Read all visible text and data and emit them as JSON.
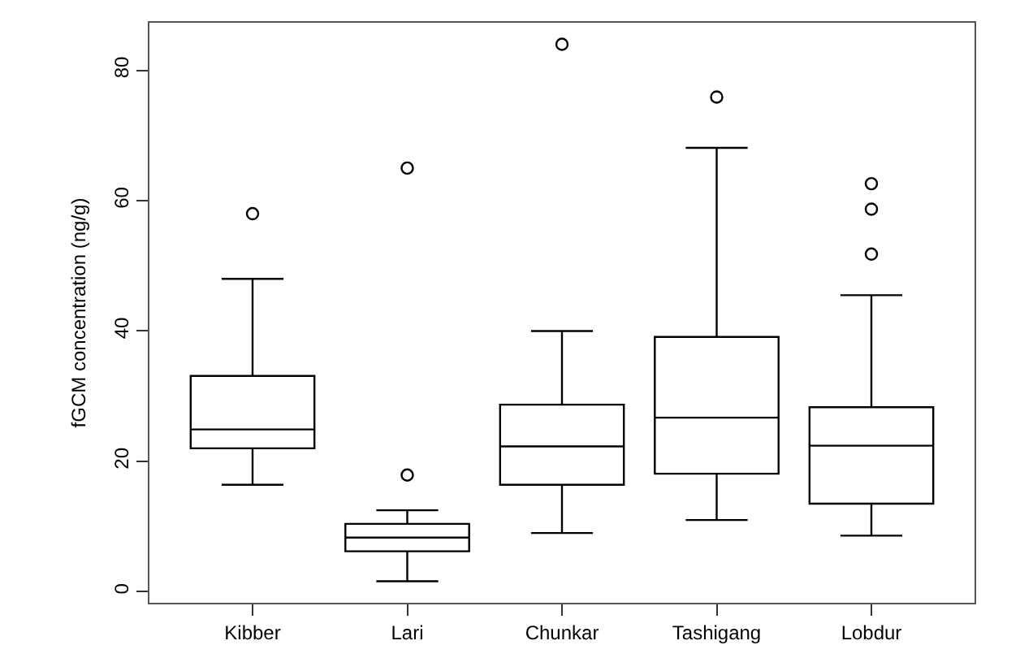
{
  "chart_data": {
    "type": "box",
    "ylabel": "fGCM concentration (ng/g)",
    "categories": [
      "Kibber",
      "Lari",
      "Chunkar",
      "Tashigang",
      "Lobdur"
    ],
    "boxes": [
      {
        "low": 16.4,
        "q1": 22.0,
        "median": 24.9,
        "q3": 33.1,
        "high": 48.0,
        "outliers": [
          58.0
        ]
      },
      {
        "low": 1.6,
        "q1": 6.2,
        "median": 8.3,
        "q3": 10.4,
        "high": 12.5,
        "outliers": [
          17.9,
          65.0
        ]
      },
      {
        "low": 9.0,
        "q1": 16.4,
        "median": 22.3,
        "q3": 28.7,
        "high": 40.0,
        "outliers": [
          84.0
        ]
      },
      {
        "low": 11.0,
        "q1": 18.1,
        "median": 26.7,
        "q3": 39.1,
        "high": 68.1,
        "outliers": [
          75.9
        ]
      },
      {
        "low": 8.6,
        "q1": 13.5,
        "median": 22.4,
        "q3": 28.3,
        "high": 45.5,
        "outliers": [
          51.8,
          58.7,
          62.6
        ]
      }
    ],
    "color": "#000000",
    "ylim": [
      -1.7,
      87.3
    ],
    "yticks": [
      0,
      20,
      40,
      60,
      80
    ]
  }
}
